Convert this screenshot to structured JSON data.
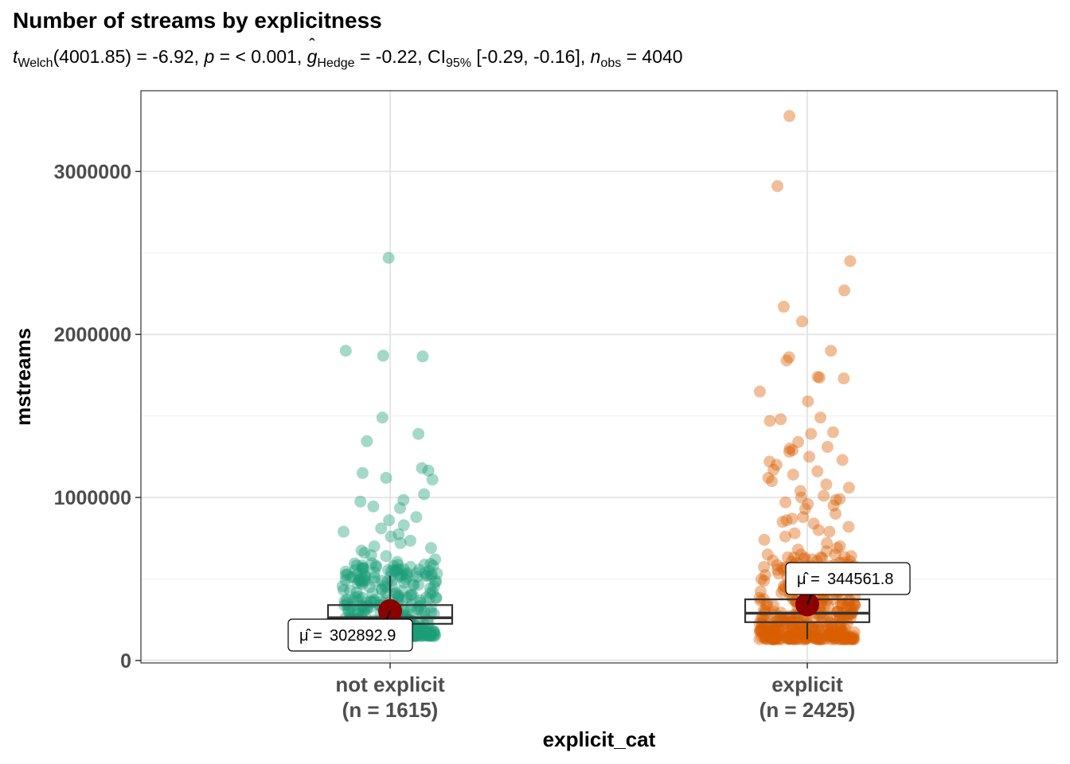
{
  "title": "Number of streams by explicitness",
  "subtitle": {
    "stat_symbol": "t",
    "stat_sub": "Welch",
    "df": "(4001.85)",
    "stat_value": "= -6.92,",
    "p_symbol": "p",
    "p_value": "= < 0.001,",
    "effect_symbol": "g",
    "effect_sub": "Hedge",
    "effect_value": "= -0.22,",
    "ci_symbol": "CI",
    "ci_sub": "95%",
    "ci_value": "[-0.29, -0.16],",
    "n_symbol": "n",
    "n_sub": "obs",
    "n_value": "= 4040"
  },
  "chart_data": {
    "type": "scatter",
    "subtype": "jittered violin-free box plot with points",
    "xlabel": "explicit_cat",
    "ylabel": "mstreams",
    "ylim": [
      0,
      3500000
    ],
    "yticks": [
      0,
      1000000,
      2000000,
      3000000
    ],
    "ytick_labels": [
      "0",
      "1000000",
      "2000000",
      "3000000"
    ],
    "grid": true,
    "groups": [
      {
        "label": "not explicit",
        "n_label": "(n = 1615)",
        "color": "#1B9E77",
        "mean": 302892.9,
        "mean_label": "302892.9",
        "box": {
          "q1": 225000,
          "median": 262000,
          "q3": 340000,
          "whisker_low": 150000,
          "whisker_high": 520000
        },
        "points_range": [
          150000,
          2470000
        ],
        "outliers": [
          2470000,
          1900000,
          1870000,
          1865000,
          1490000,
          1390000,
          1345000,
          1180000,
          1165000,
          1150000,
          1120000,
          1110000,
          1020000,
          985000,
          975000,
          945000,
          935000,
          880000,
          860000,
          830000,
          810000,
          790000,
          775000,
          760000,
          735000,
          720000,
          700000,
          690000,
          675000,
          660000,
          645000,
          640000,
          620000,
          605000,
          595000,
          580000,
          565000,
          555000
        ]
      },
      {
        "label": "explicit",
        "n_label": "(n = 2425)",
        "color": "#D95F02",
        "mean": 344561.8,
        "mean_label": "344561.8",
        "box": {
          "q1": 235000,
          "median": 290000,
          "q3": 375000,
          "whisker_low": 130000,
          "whisker_high": 570000
        },
        "points_range": [
          130000,
          3340000
        ],
        "outliers": [
          3340000,
          2910000,
          2450000,
          2270000,
          2170000,
          2080000,
          1900000,
          1860000,
          1840000,
          1740000,
          1735000,
          1730000,
          1650000,
          1590000,
          1490000,
          1480000,
          1470000,
          1400000,
          1390000,
          1340000,
          1310000,
          1300000,
          1290000,
          1280000,
          1250000,
          1230000,
          1220000,
          1200000,
          1170000,
          1160000,
          1140000,
          1120000,
          1100000,
          1080000,
          1060000,
          1040000,
          1010000,
          1000000,
          990000,
          985000,
          970000,
          960000,
          950000,
          930000,
          900000,
          880000,
          870000,
          860000,
          850000,
          840000,
          820000,
          800000,
          790000,
          780000,
          760000,
          740000,
          720000,
          700000,
          690000,
          680000,
          670000,
          650000,
          640000,
          630000,
          610000,
          600000
        ]
      }
    ],
    "mean_color": "#8B0000"
  }
}
